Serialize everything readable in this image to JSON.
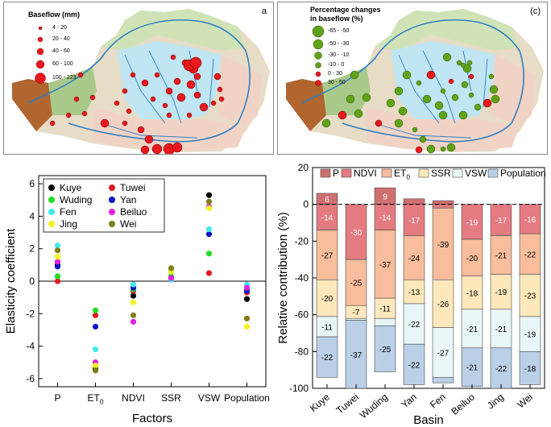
{
  "map_a": {
    "panel_label": "a",
    "legend_title": "Baseflow (mm)",
    "legend_items": [
      "4 - 20",
      "20 - 40",
      "40 - 60",
      "60 - 100",
      "100 - 223"
    ],
    "colors": {
      "dot": "#e8181d",
      "basin": "#bfe6f2",
      "loess": "#f1d3c6",
      "plateau": "#a9c98a",
      "mountain": "#b0662e",
      "river": "#2f7fc4"
    }
  },
  "map_c": {
    "panel_label": "(c)",
    "legend_title_line1": "Percentage changes",
    "legend_title_line2": "in baseflow (%)",
    "legend_items": [
      {
        "label": "-65 - -50",
        "color": "#5fa318"
      },
      {
        "label": "-50 - -30",
        "color": "#5fa318"
      },
      {
        "label": "-30 - -10",
        "color": "#5fa318"
      },
      {
        "label": "-10 - 0",
        "color": "#5fa318"
      },
      {
        "label": "0 - 30",
        "color": "#e8181d"
      },
      {
        "label": "30 - 50",
        "color": "#e8181d"
      }
    ]
  },
  "chart_data": [
    {
      "type": "scatter",
      "xlabel": "Factors",
      "ylabel": "Elasticity coefficient",
      "categories": [
        "P",
        "ET0",
        "NDVI",
        "SSR",
        "VSW",
        "Population"
      ],
      "category_labels": [
        {
          "main": "P",
          "sub": ""
        },
        {
          "main": "ET",
          "sub": "0"
        },
        {
          "main": "NDVI",
          "sub": ""
        },
        {
          "main": "SSR",
          "sub": ""
        },
        {
          "main": "VSW",
          "sub": ""
        },
        {
          "main": "Population",
          "sub": ""
        }
      ],
      "ylim": [
        -6.5,
        6.5
      ],
      "yticks": [
        -6,
        -4,
        -2,
        0,
        2,
        4,
        6
      ],
      "series": [
        {
          "name": "Kuye",
          "color": "#000000",
          "values": [
            1.0,
            -5.4,
            -0.9,
            0.6,
            5.3,
            -1.1
          ]
        },
        {
          "name": "Tuwei",
          "color": "#e41a1c",
          "values": [
            0.0,
            -2.1,
            -0.6,
            0.2,
            0.5,
            -0.7
          ]
        },
        {
          "name": "Wuding",
          "color": "#22dd22",
          "values": [
            0.3,
            -1.8,
            -0.5,
            0.3,
            1.7,
            -0.5
          ]
        },
        {
          "name": "Yan",
          "color": "#0a16c8",
          "values": [
            0.9,
            -2.8,
            -0.4,
            0.1,
            2.9,
            -0.6
          ]
        },
        {
          "name": "Fen",
          "color": "#44eaea",
          "values": [
            2.2,
            -4.2,
            -0.2,
            0.1,
            3.2,
            -0.2
          ]
        },
        {
          "name": "Beiluo",
          "color": "#e020e0",
          "values": [
            1.2,
            -5.0,
            -2.5,
            0.2,
            4.6,
            -0.4
          ]
        },
        {
          "name": "Jing",
          "color": "#f2f21e",
          "values": [
            1.5,
            -5.2,
            -1.3,
            0.6,
            4.5,
            -2.8
          ]
        },
        {
          "name": "Wei",
          "color": "#7f7f1b",
          "values": [
            1.9,
            -5.5,
            -2.1,
            0.8,
            4.9,
            -2.3
          ]
        }
      ]
    },
    {
      "type": "bar",
      "stacked": true,
      "xlabel": "Basin",
      "ylabel": "Relative contribution (%)",
      "categories": [
        "Kuye",
        "Tuwei",
        "Wuding",
        "Yan",
        "Fen",
        "Beiluo",
        "Jing",
        "Wei"
      ],
      "ylim": [
        -100,
        20
      ],
      "yticks": [
        20,
        0,
        -20,
        -40,
        -60,
        -80,
        -100
      ],
      "legend_labels": [
        {
          "main": "P",
          "sub": ""
        },
        {
          "main": "NDVI",
          "sub": ""
        },
        {
          "main": "ET",
          "sub": "0"
        },
        {
          "main": "SSR",
          "sub": ""
        },
        {
          "main": "VSW",
          "sub": ""
        },
        {
          "main": "Population",
          "sub": ""
        }
      ],
      "series": [
        {
          "name": "P",
          "color": "#cf6f70",
          "values": [
            6,
            0,
            9,
            3,
            2,
            0,
            0,
            0
          ],
          "labels": [
            "6",
            "",
            "9",
            "",
            "",
            "",
            "",
            ""
          ]
        },
        {
          "name": "NDVI",
          "color": "#e47b81",
          "values": [
            -14,
            -30,
            -14,
            -17,
            -2,
            -19,
            -17,
            -16
          ],
          "labels": [
            "-14",
            "-30",
            "-14",
            "-17",
            "",
            "-19",
            "-17",
            "-16"
          ]
        },
        {
          "name": "ET0",
          "color": "#f7bd9c",
          "values": [
            -27,
            -25,
            -37,
            -24,
            -39,
            -20,
            -21,
            -22
          ],
          "labels": [
            "-27",
            "-25",
            "-37",
            "-24",
            "-39",
            "-20",
            "-21",
            "-22"
          ]
        },
        {
          "name": "SSR",
          "color": "#fde8bb",
          "values": [
            -20,
            -7,
            -11,
            -13,
            -26,
            -18,
            -19,
            -23
          ],
          "labels": [
            "-20",
            "-7",
            "-11",
            "-13",
            "-26",
            "-18",
            "-19",
            "-23"
          ]
        },
        {
          "name": "VSW",
          "color": "#e9f6f8",
          "values": [
            -11,
            -1,
            -4,
            -22,
            -27,
            -21,
            -21,
            -19
          ],
          "labels": [
            "-11",
            "",
            "",
            "-22",
            "-27",
            "-21",
            "-21",
            "-19"
          ]
        },
        {
          "name": "Population",
          "color": "#b9d0e6",
          "values": [
            -22,
            -37,
            -25,
            -22,
            -3,
            -21,
            -22,
            -18
          ],
          "labels": [
            "-22",
            "-37",
            "-25",
            "-22",
            "",
            "-21",
            "-22",
            "-18"
          ]
        }
      ]
    }
  ]
}
